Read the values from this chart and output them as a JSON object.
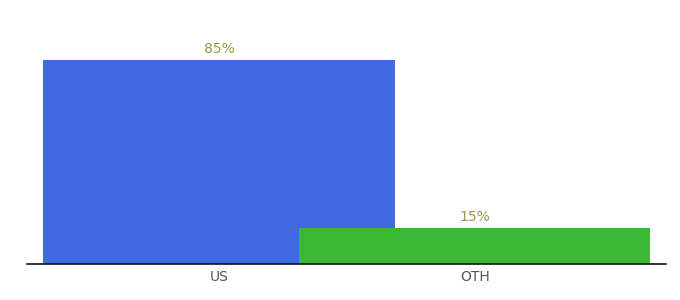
{
  "categories": [
    "US",
    "OTH"
  ],
  "values": [
    85,
    15
  ],
  "bar_colors": [
    "#4169e1",
    "#3cb932"
  ],
  "label_texts": [
    "85%",
    "15%"
  ],
  "ylim": [
    0,
    100
  ],
  "background_color": "#ffffff",
  "label_fontsize": 10,
  "tick_fontsize": 10,
  "bar_width": 0.55,
  "label_color": "#999944",
  "tick_color": "#555555",
  "x_positions": [
    0.3,
    0.7
  ],
  "xlim": [
    0.0,
    1.0
  ]
}
